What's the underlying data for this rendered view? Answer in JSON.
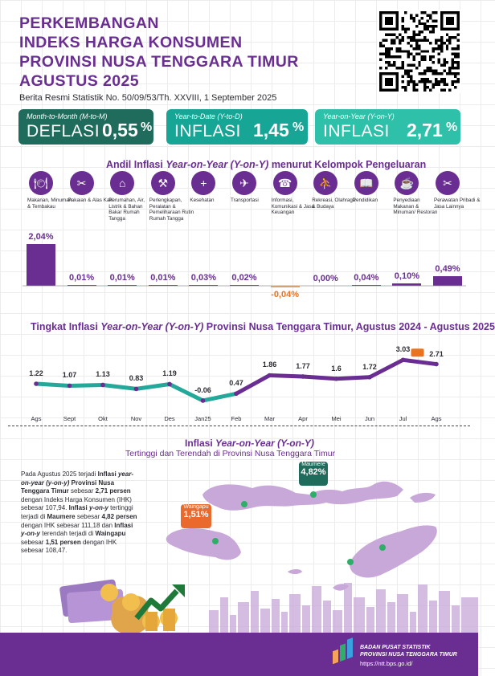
{
  "header": {
    "title_lines": [
      "PERKEMBANGAN",
      "INDEKS HARGA KONSUMEN",
      "PROVINSI NUSA TENGGARA TIMUR",
      "AGUSTUS 2025"
    ],
    "subtitle": "Berita Resmi Statistik No. 50/09/53/Th. XXVIII, 1 September 2025"
  },
  "stats": {
    "mtm": {
      "caption": "Month-to-Month (M-to-M)",
      "label": "DEFLASI",
      "value": "0,55",
      "unit": "%",
      "color": "#1f6b5c"
    },
    "ytd": {
      "caption": "Year-to-Date (Y-to-D)",
      "label": "INFLASI",
      "value": "1,45",
      "unit": "%",
      "color": "#17a595"
    },
    "yoy": {
      "caption": "Year-on-Year (Y-on-Y)",
      "label": "INFLASI",
      "value": "2,71",
      "unit": "%",
      "color": "#2fc0a9"
    }
  },
  "colors": {
    "purple": "#6a2d91",
    "orange": "#f5a25a",
    "teal": "#23a89a",
    "map": "#c8a8d8",
    "green_dot": "#2fae6a"
  },
  "chart_data": [
    {
      "type": "bar",
      "title_parts": [
        "Andil Inflasi ",
        "Year-on-Year (Y-on-Y)",
        " menurut Kelompok Pengeluaran"
      ],
      "categories": [
        "Makanan, Minuman & Tembakau",
        "Pakaian & Alas Kaki",
        "Perumahan, Air, Listrik & Bahan Bakar Rumah Tangga",
        "Perlengkapan, Peralatan & Pemeliharaan Rutin Rumah Tangga",
        "Kesehatan",
        "Transportasi",
        "Informasi, Komunikasi & Jasa Keuangan",
        "Rekreasi, Olahraga & Budaya",
        "Pendidikan",
        "Penyediaan Makanan & Minuman/ Restoran",
        "Perawatan Pribadi & Jasa Lainnya"
      ],
      "icons": [
        "food-icon",
        "clothing-icon",
        "house-icon",
        "appliance-icon",
        "health-icon",
        "plane-icon",
        "phone-icon",
        "sport-icon",
        "book-icon",
        "restaurant-icon",
        "personal-care-icon"
      ],
      "values": [
        2.04,
        0.01,
        0.01,
        0.01,
        0.03,
        0.02,
        -0.04,
        0.0,
        0.04,
        0.1,
        0.49
      ],
      "value_labels": [
        "2,04%",
        "0,01%",
        "0,01%",
        "0,01%",
        "0,03%",
        "0,02%",
        "-0,04%",
        "0,00%",
        "0,04%",
        "0,10%",
        "0,49%"
      ]
    },
    {
      "type": "line",
      "title_parts": [
        "Tingkat Inflasi ",
        "Year-on-Year (Y-on-Y)",
        " Provinsi Nusa Tenggara Timur, Agustus 2024 - Agustus 2025"
      ],
      "categories": [
        "Ags",
        "Sept",
        "Okt",
        "Nov",
        "Des",
        "Jan25",
        "Feb",
        "Mar",
        "Apr",
        "Mei",
        "Jun",
        "Jul",
        "Ags"
      ],
      "values": [
        1.22,
        1.07,
        1.13,
        0.83,
        1.19,
        -0.06,
        0.47,
        1.86,
        1.77,
        1.6,
        1.72,
        3.03,
        2.71
      ],
      "value_labels": [
        "1.22",
        "1.07",
        "1.13",
        "0.83",
        "1.19",
        "-0.06",
        "0.47",
        "1.86",
        "1.77",
        "1.6",
        "1.72",
        "3.03",
        "2.71"
      ]
    }
  ],
  "regional": {
    "title_parts": [
      "Inflasi ",
      "Year-on-Year (Y-on-Y)"
    ],
    "subtitle": "Tertinggi dan Terendah di Provinsi Nusa Tenggara Timur",
    "paragraph": [
      {
        "t": "Pada Agustus 2025 terjadi ",
        "b": false,
        "i": false
      },
      {
        "t": "Inflasi ",
        "b": true,
        "i": false
      },
      {
        "t": "year-on-year (y-on-y)",
        "b": true,
        "i": true
      },
      {
        "t": " Provinsi Nusa Tenggara Timur",
        "b": true,
        "i": false
      },
      {
        "t": " sebesar ",
        "b": false,
        "i": false
      },
      {
        "t": "2,71 persen",
        "b": true,
        "i": false
      },
      {
        "t": " dengan Indeks Harga Konsumen (IHK) sebesar 107,94. ",
        "b": false,
        "i": false
      },
      {
        "t": "Inflasi ",
        "b": true,
        "i": false
      },
      {
        "t": "y-on-y",
        "b": true,
        "i": true
      },
      {
        "t": " tertinggi terjadi di ",
        "b": false,
        "i": false
      },
      {
        "t": "Maumere",
        "b": true,
        "i": false
      },
      {
        "t": " sebesar ",
        "b": false,
        "i": false
      },
      {
        "t": "4,82 persen",
        "b": true,
        "i": false
      },
      {
        "t": " dengan IHK sebesar 111,18 dan ",
        "b": false,
        "i": false
      },
      {
        "t": "Inflasi ",
        "b": true,
        "i": false
      },
      {
        "t": "y-on-y",
        "b": true,
        "i": true
      },
      {
        "t": " terendah terjadi di ",
        "b": false,
        "i": false
      },
      {
        "t": "Waingapu",
        "b": true,
        "i": false
      },
      {
        "t": " sebesar ",
        "b": false,
        "i": false
      },
      {
        "t": "1,51 persen",
        "b": true,
        "i": false
      },
      {
        "t": " dengan IHK sebesar 108,47.",
        "b": false,
        "i": false
      }
    ],
    "highest": {
      "name": "Maumere",
      "value": "4,82%"
    },
    "lowest": {
      "name": "Waingapu",
      "value": "1,51%"
    }
  },
  "footer": {
    "org_line1": "BADAN PUSAT STATISTIK",
    "org_line2": "PROVINSI NUSA TENGGARA TIMUR",
    "url": "https://ntt.bps.go.id/"
  }
}
